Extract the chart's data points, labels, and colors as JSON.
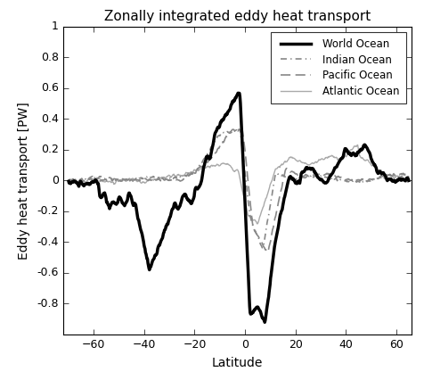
{
  "title": "Zonally integrated eddy heat transport",
  "xlabel": "Latitude",
  "ylabel": "Eddy heat transport [PW]",
  "xlim": [
    -72,
    66
  ],
  "ylim": [
    -1,
    1
  ],
  "xticks": [
    -60,
    -40,
    -20,
    0,
    20,
    40,
    60
  ],
  "yticks": [
    -0.8,
    -0.6,
    -0.4,
    -0.2,
    0,
    0.2,
    0.4,
    0.6,
    0.8,
    1
  ],
  "legend": [
    {
      "label": "World Ocean",
      "color": "#000000",
      "lw": 2.5,
      "ls": "solid"
    },
    {
      "label": "Indian Ocean",
      "color": "#888888",
      "lw": 1.2,
      "ls": "dashdot"
    },
    {
      "label": "Pacific Ocean",
      "color": "#888888",
      "lw": 1.2,
      "ls": "dashed"
    },
    {
      "label": "Atlantic Ocean",
      "color": "#aaaaaa",
      "lw": 1.0,
      "ls": "solid"
    }
  ],
  "background": "#ffffff",
  "figsize": [
    4.76,
    4.26
  ],
  "dpi": 100
}
